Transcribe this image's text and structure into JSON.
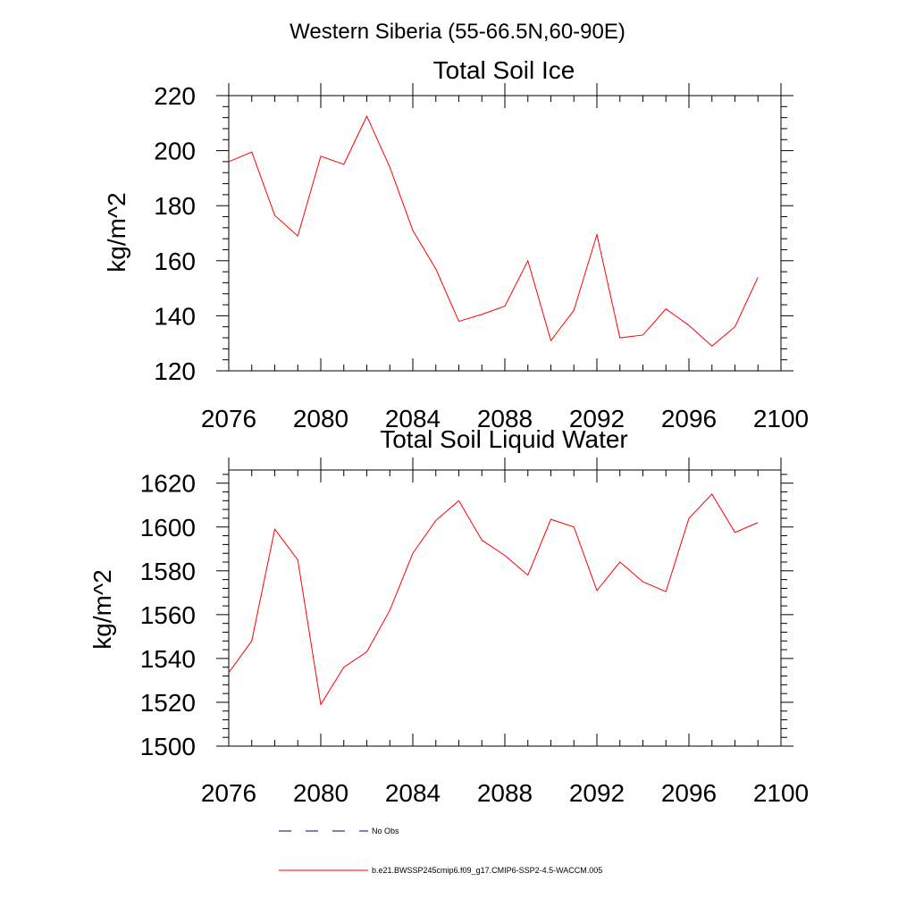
{
  "figure_title": "Western Siberia (55-66.5N,60-90E)",
  "legend": {
    "obs_label": "No Obs",
    "model_label": "b.e21.BWSSP245cmip6.f09_g17.CMIP6-SSP2-4.5-WACCM.005",
    "obs_color": "#000080",
    "model_color": "#ff0000"
  },
  "chart_data": [
    {
      "type": "line",
      "title": "Total Soil Ice",
      "xlabel": "",
      "ylabel": "kg/m^2",
      "xlim": [
        2076,
        2100
      ],
      "ylim": [
        120,
        220
      ],
      "xticks": [
        2076,
        2080,
        2084,
        2088,
        2092,
        2096,
        2100
      ],
      "yticks": [
        120,
        140,
        160,
        180,
        200,
        220
      ],
      "x": [
        2076,
        2077,
        2078,
        2079,
        2080,
        2081,
        2082,
        2083,
        2084,
        2085,
        2086,
        2087,
        2088,
        2089,
        2090,
        2091,
        2092,
        2093,
        2094,
        2095,
        2096,
        2097,
        2098,
        2099
      ],
      "series": [
        {
          "name": "b.e21.BWSSP245cmip6.f09_g17.CMIP6-SSP2-4.5-WACCM.005",
          "color": "#ff0000",
          "values": [
            196,
            199.5,
            176.5,
            169,
            198,
            195,
            212.5,
            194,
            171,
            157,
            138,
            140.5,
            143.5,
            160,
            131,
            142,
            169.5,
            132,
            133,
            142.5,
            136.5,
            129,
            136,
            154
          ]
        }
      ]
    },
    {
      "type": "line",
      "title": "Total Soil Liquid Water",
      "xlabel": "",
      "ylabel": "kg/m^2",
      "xlim": [
        2076,
        2100
      ],
      "ylim": [
        1500,
        1626
      ],
      "xticks": [
        2076,
        2080,
        2084,
        2088,
        2092,
        2096,
        2100
      ],
      "yticks": [
        1500,
        1520,
        1540,
        1560,
        1580,
        1600,
        1620
      ],
      "x": [
        2076,
        2077,
        2078,
        2079,
        2080,
        2081,
        2082,
        2083,
        2084,
        2085,
        2086,
        2087,
        2088,
        2089,
        2090,
        2091,
        2092,
        2093,
        2094,
        2095,
        2096,
        2097,
        2098,
        2099
      ],
      "series": [
        {
          "name": "b.e21.BWSSP245cmip6.f09_g17.CMIP6-SSP2-4.5-WACCM.005",
          "color": "#ff0000",
          "values": [
            1533.5,
            1548,
            1599,
            1585,
            1519,
            1536,
            1543,
            1562,
            1588,
            1603,
            1612,
            1594,
            1587,
            1578,
            1603.5,
            1600,
            1571,
            1584,
            1575,
            1570.5,
            1604,
            1615,
            1597.5,
            1602
          ]
        }
      ]
    }
  ]
}
